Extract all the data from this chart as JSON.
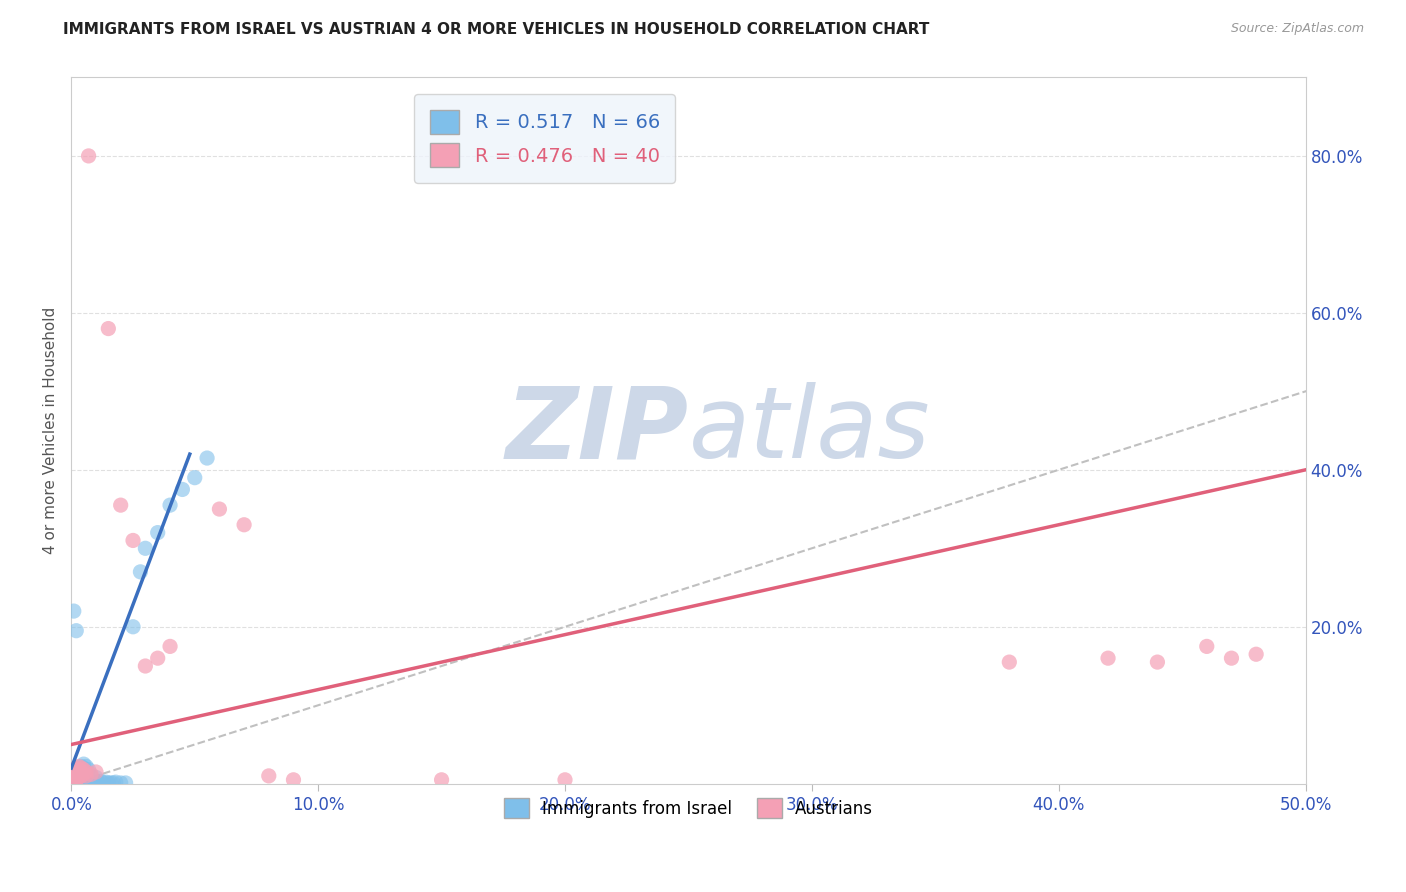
{
  "title": "IMMIGRANTS FROM ISRAEL VS AUSTRIAN 4 OR MORE VEHICLES IN HOUSEHOLD CORRELATION CHART",
  "source": "Source: ZipAtlas.com",
  "ylabel": "4 or more Vehicles in Household",
  "xlabel_blue": "Immigrants from Israel",
  "xlabel_pink": "Austrians",
  "xlim": [
    0.0,
    0.5
  ],
  "ylim": [
    0.0,
    0.9
  ],
  "xticks": [
    0.0,
    0.1,
    0.2,
    0.3,
    0.4,
    0.5
  ],
  "yticks": [
    0.2,
    0.4,
    0.6,
    0.8
  ],
  "ytick_labels": [
    "20.0%",
    "40.0%",
    "60.0%",
    "80.0%"
  ],
  "xtick_labels": [
    "0.0%",
    "10.0%",
    "20.0%",
    "30.0%",
    "40.0%",
    "50.0%"
  ],
  "R_blue": 0.517,
  "N_blue": 66,
  "R_pink": 0.476,
  "N_pink": 40,
  "blue_color": "#7fbfea",
  "pink_color": "#f4a0b5",
  "blue_line_color": "#3a6fbf",
  "pink_line_color": "#e0607a",
  "diag_line_color": "#c0c0c0",
  "legend_box_color": "#eef4fb",
  "title_color": "#222222",
  "axis_label_color": "#3355bb",
  "grid_color": "#e0e0e0",
  "watermark_color": "#cdd8e8",
  "blue_scatter": [
    [
      0.001,
      0.002
    ],
    [
      0.001,
      0.005
    ],
    [
      0.001,
      0.01
    ],
    [
      0.001,
      0.015
    ],
    [
      0.001,
      0.0
    ],
    [
      0.001,
      0.001
    ],
    [
      0.002,
      0.0
    ],
    [
      0.002,
      0.003
    ],
    [
      0.002,
      0.008
    ],
    [
      0.002,
      0.012
    ],
    [
      0.002,
      0.02
    ],
    [
      0.002,
      0.001
    ],
    [
      0.003,
      0.0
    ],
    [
      0.003,
      0.002
    ],
    [
      0.003,
      0.005
    ],
    [
      0.003,
      0.01
    ],
    [
      0.003,
      0.018
    ],
    [
      0.003,
      0.001
    ],
    [
      0.004,
      0.0
    ],
    [
      0.004,
      0.003
    ],
    [
      0.004,
      0.008
    ],
    [
      0.004,
      0.015
    ],
    [
      0.004,
      0.022
    ],
    [
      0.004,
      0.001
    ],
    [
      0.005,
      0.001
    ],
    [
      0.005,
      0.004
    ],
    [
      0.005,
      0.012
    ],
    [
      0.005,
      0.02
    ],
    [
      0.005,
      0.025
    ],
    [
      0.005,
      0.002
    ],
    [
      0.006,
      0.002
    ],
    [
      0.006,
      0.008
    ],
    [
      0.006,
      0.015
    ],
    [
      0.006,
      0.022
    ],
    [
      0.007,
      0.001
    ],
    [
      0.007,
      0.005
    ],
    [
      0.007,
      0.018
    ],
    [
      0.008,
      0.002
    ],
    [
      0.008,
      0.01
    ],
    [
      0.009,
      0.001
    ],
    [
      0.01,
      0.002
    ],
    [
      0.01,
      0.008
    ],
    [
      0.011,
      0.001
    ],
    [
      0.012,
      0.003
    ],
    [
      0.013,
      0.001
    ],
    [
      0.014,
      0.002
    ],
    [
      0.015,
      0.001
    ],
    [
      0.016,
      0.001
    ],
    [
      0.017,
      0.001
    ],
    [
      0.018,
      0.002
    ],
    [
      0.02,
      0.001
    ],
    [
      0.022,
      0.001
    ],
    [
      0.0,
      0.001
    ],
    [
      0.0,
      0.003
    ],
    [
      0.0,
      0.0
    ],
    [
      0.0,
      0.002
    ],
    [
      0.001,
      0.22
    ],
    [
      0.002,
      0.195
    ],
    [
      0.025,
      0.2
    ],
    [
      0.028,
      0.27
    ],
    [
      0.03,
      0.3
    ],
    [
      0.035,
      0.32
    ],
    [
      0.04,
      0.355
    ],
    [
      0.045,
      0.375
    ],
    [
      0.05,
      0.39
    ],
    [
      0.055,
      0.415
    ]
  ],
  "pink_scatter": [
    [
      0.001,
      0.002
    ],
    [
      0.001,
      0.008
    ],
    [
      0.001,
      0.012
    ],
    [
      0.001,
      0.018
    ],
    [
      0.002,
      0.005
    ],
    [
      0.002,
      0.01
    ],
    [
      0.002,
      0.015
    ],
    [
      0.002,
      0.02
    ],
    [
      0.003,
      0.008
    ],
    [
      0.003,
      0.012
    ],
    [
      0.003,
      0.018
    ],
    [
      0.003,
      0.022
    ],
    [
      0.004,
      0.01
    ],
    [
      0.004,
      0.015
    ],
    [
      0.004,
      0.02
    ],
    [
      0.005,
      0.012
    ],
    [
      0.005,
      0.018
    ],
    [
      0.006,
      0.01
    ],
    [
      0.006,
      0.015
    ],
    [
      0.007,
      0.8
    ],
    [
      0.008,
      0.012
    ],
    [
      0.01,
      0.015
    ],
    [
      0.015,
      0.58
    ],
    [
      0.02,
      0.355
    ],
    [
      0.025,
      0.31
    ],
    [
      0.03,
      0.15
    ],
    [
      0.035,
      0.16
    ],
    [
      0.04,
      0.175
    ],
    [
      0.06,
      0.35
    ],
    [
      0.07,
      0.33
    ],
    [
      0.08,
      0.01
    ],
    [
      0.09,
      0.005
    ],
    [
      0.15,
      0.005
    ],
    [
      0.2,
      0.005
    ],
    [
      0.38,
      0.155
    ],
    [
      0.42,
      0.16
    ],
    [
      0.44,
      0.155
    ],
    [
      0.46,
      0.175
    ],
    [
      0.47,
      0.16
    ],
    [
      0.48,
      0.165
    ]
  ],
  "blue_line_pts": [
    [
      0.0,
      0.02
    ],
    [
      0.048,
      0.42
    ]
  ],
  "pink_line_pts": [
    [
      0.0,
      0.05
    ],
    [
      0.5,
      0.4
    ]
  ],
  "diag_line_pts": [
    [
      0.0,
      0.0
    ],
    [
      0.85,
      0.85
    ]
  ]
}
